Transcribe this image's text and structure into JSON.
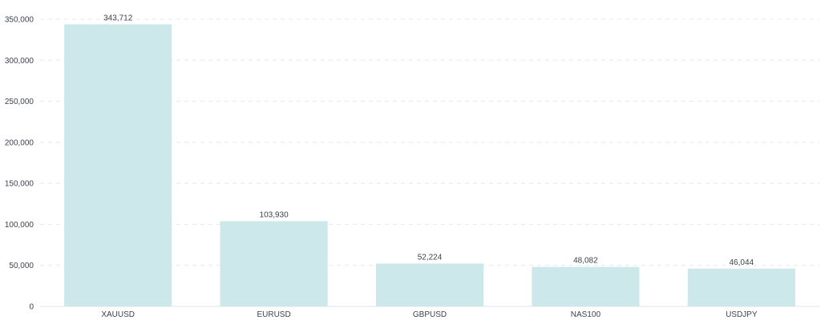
{
  "chart_data": {
    "type": "bar",
    "title": "",
    "xlabel": "",
    "ylabel": "",
    "categories": [
      "XAUUSD",
      "EURUSD",
      "GBPUSD",
      "NAS100",
      "USDJPY"
    ],
    "values": [
      343712,
      103930,
      52224,
      48082,
      46044
    ],
    "value_labels": [
      "343,712",
      "103,930",
      "52,224",
      "48,082",
      "46,044"
    ],
    "ylim": [
      0,
      350000
    ],
    "y_ticks": [
      0,
      50000,
      100000,
      150000,
      200000,
      250000,
      300000,
      350000
    ],
    "y_tick_labels": [
      "0",
      "50,000",
      "100,000",
      "150,000",
      "200,000",
      "250,000",
      "300,000",
      "350,000"
    ],
    "grid": true,
    "legend": "none",
    "colors": {
      "bar": "#cde8ea",
      "grid": "#e6e8ec",
      "text": "#3d4250"
    }
  }
}
